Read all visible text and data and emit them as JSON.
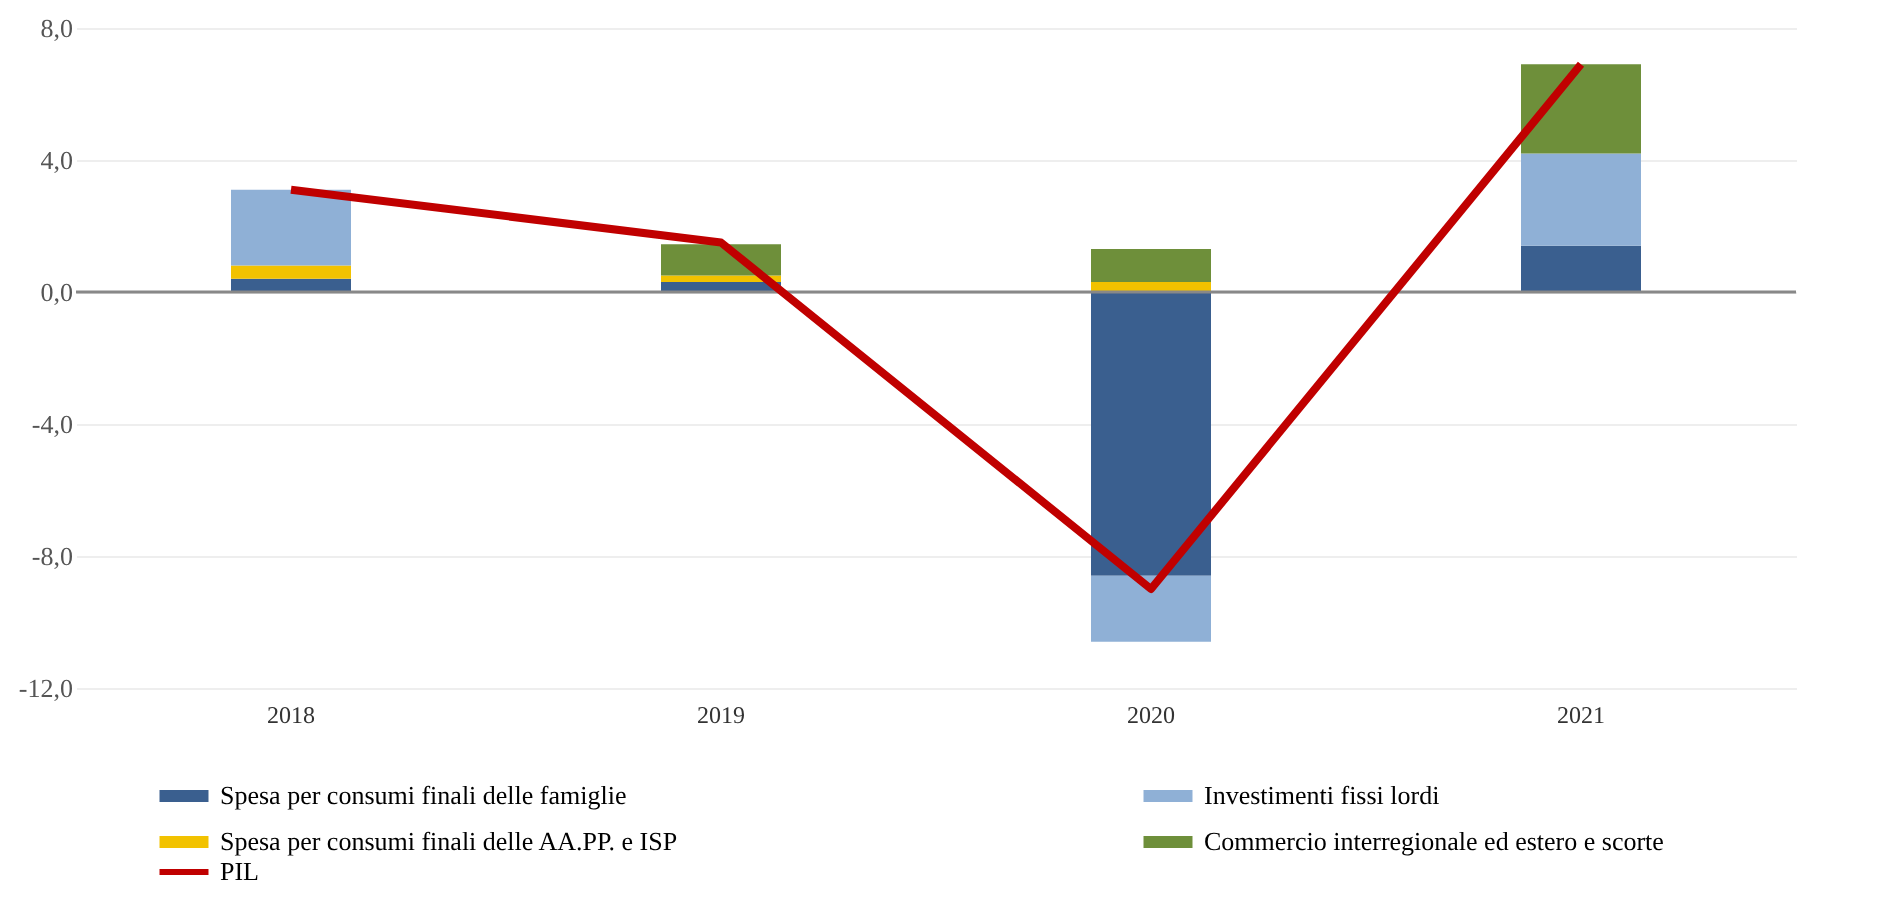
{
  "chart_data": {
    "type": "bar",
    "stacked": true,
    "categories": [
      "2018",
      "2019",
      "2020",
      "2021"
    ],
    "series": [
      {
        "name": "Spesa per consumi finali delle famiglie",
        "color": "#3a5f8f",
        "values": [
          0.4,
          0.3,
          -8.6,
          1.4
        ]
      },
      {
        "name": "Spesa per consumi finali delle AA.PP. e ISP",
        "color": "#f2c200",
        "values": [
          0.4,
          0.2,
          0.3,
          0.0
        ]
      },
      {
        "name": "Investimenti fissi lordi",
        "color": "#8fb0d6",
        "values": [
          2.3,
          0.0,
          -2.0,
          2.8
        ]
      },
      {
        "name": "Commercio interregionale ed estero e scorte",
        "color": "#6e8f3a",
        "values": [
          0.0,
          0.95,
          1.0,
          2.7
        ]
      },
      {
        "name": "PIL",
        "type": "line",
        "color": "#c00000",
        "values": [
          3.1,
          1.5,
          -9.0,
          6.9
        ]
      }
    ],
    "ylim": [
      -12,
      8
    ],
    "yticks": [
      {
        "value": -12,
        "label": "-12,0"
      },
      {
        "value": -8,
        "label": "-8,0"
      },
      {
        "value": -4,
        "label": "-4,0"
      },
      {
        "value": 0,
        "label": "0,0"
      },
      {
        "value": 4,
        "label": "4,0"
      },
      {
        "value": 8,
        "label": "8,0"
      }
    ],
    "grid": "y",
    "legend": "bottom",
    "ref_lines": [
      {
        "axis": "y",
        "value": 0,
        "color": "#888888"
      }
    ]
  }
}
